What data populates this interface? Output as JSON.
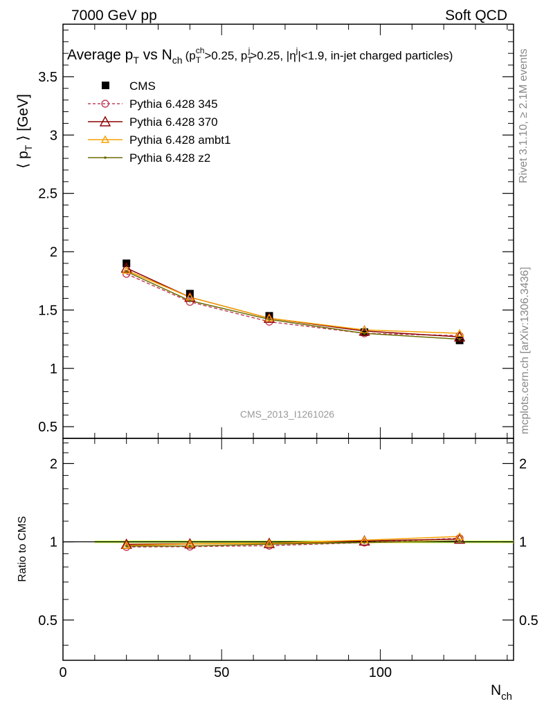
{
  "header": {
    "left": "7000 GeV pp",
    "right": "Soft QCD"
  },
  "side_labels": {
    "rivet": "Rivet 3.1.10, ≥ 2.1M events",
    "mcplots": "mcplots.cern.ch [arXiv:1306.3436]"
  },
  "watermark": "CMS_2013_I1261026",
  "colors": {
    "cms": "#000000",
    "p345": "#c0405a",
    "p370": "#8b0000",
    "ambt1": "#f5a000",
    "z2": "#6b6b00",
    "band_green": "#33cc33",
    "band_yellow": "#ffff66"
  },
  "chart_data": [
    {
      "type": "line",
      "title": {
        "main": "Average p",
        "sub1": "T",
        "vs": " vs N",
        "sub2": "ch",
        "cuts": "(p",
        "cut1_sub": "T",
        "cut1_sup": "ch",
        "cut1_val": ">0.25, p",
        "cut2_sub": "T",
        "cut2_sup": "j",
        "cut2_val": ">0.25, |η",
        "cut3_sup": "j",
        "cut3_val": "|<1.9, in-jet charged particles)"
      },
      "ylabel": {
        "open": "⟨ p",
        "sub": "T",
        "close": " ⟩ [GeV]"
      },
      "xlim": [
        0,
        142
      ],
      "ylim": [
        0.4,
        3.95
      ],
      "yticks": [
        0.5,
        1,
        1.5,
        2,
        2.5,
        3,
        3.5
      ],
      "ytick_labels": [
        "0.5",
        "1",
        "1.5",
        "2",
        "2.5",
        "3",
        "3.5"
      ],
      "legend_position": "top-left",
      "x": [
        20,
        40,
        65,
        95,
        125
      ],
      "series": [
        {
          "name": "CMS",
          "key": "cms",
          "style": "square",
          "values": [
            1.9,
            1.64,
            1.45,
            1.31,
            1.24
          ]
        },
        {
          "name": "Pythia 6.428 345",
          "key": "p345",
          "style": "circle-dashed",
          "values": [
            1.81,
            1.57,
            1.4,
            1.3,
            1.28
          ]
        },
        {
          "name": "Pythia 6.428 370",
          "key": "p370",
          "style": "triangle",
          "values": [
            1.86,
            1.61,
            1.43,
            1.32,
            1.27
          ]
        },
        {
          "name": "Pythia 6.428 ambt1",
          "key": "ambt1",
          "style": "triangle-small",
          "values": [
            1.84,
            1.61,
            1.43,
            1.33,
            1.3
          ]
        },
        {
          "name": "Pythia 6.428 z2",
          "key": "z2",
          "style": "dot",
          "values": [
            1.83,
            1.58,
            1.42,
            1.3,
            1.25
          ]
        }
      ]
    },
    {
      "type": "line",
      "ylabel": "Ratio to CMS",
      "xlabel": {
        "main": "N",
        "sub": "ch"
      },
      "xlim": [
        0,
        142
      ],
      "ylim": [
        0.35,
        2.5
      ],
      "log_scale_y": true,
      "xticks": [
        0,
        50,
        100
      ],
      "xtick_labels": [
        "0",
        "50",
        "100"
      ],
      "yticks": [
        0.5,
        1,
        2
      ],
      "ytick_labels": [
        "0.5",
        "1",
        "2"
      ],
      "band_range": [
        10,
        142
      ],
      "x": [
        20,
        40,
        65,
        95,
        125
      ],
      "series": [
        {
          "key": "p345",
          "style": "circle-dashed",
          "values": [
            0.955,
            0.958,
            0.966,
            0.993,
            1.032
          ]
        },
        {
          "key": "p370",
          "style": "triangle",
          "values": [
            0.978,
            0.982,
            0.986,
            1.008,
            1.024
          ]
        },
        {
          "key": "ambt1",
          "style": "triangle-small",
          "values": [
            0.968,
            0.98,
            0.986,
            1.015,
            1.048
          ]
        },
        {
          "key": "z2",
          "style": "dot",
          "values": [
            0.963,
            0.963,
            0.979,
            0.993,
            1.008
          ]
        }
      ]
    }
  ]
}
